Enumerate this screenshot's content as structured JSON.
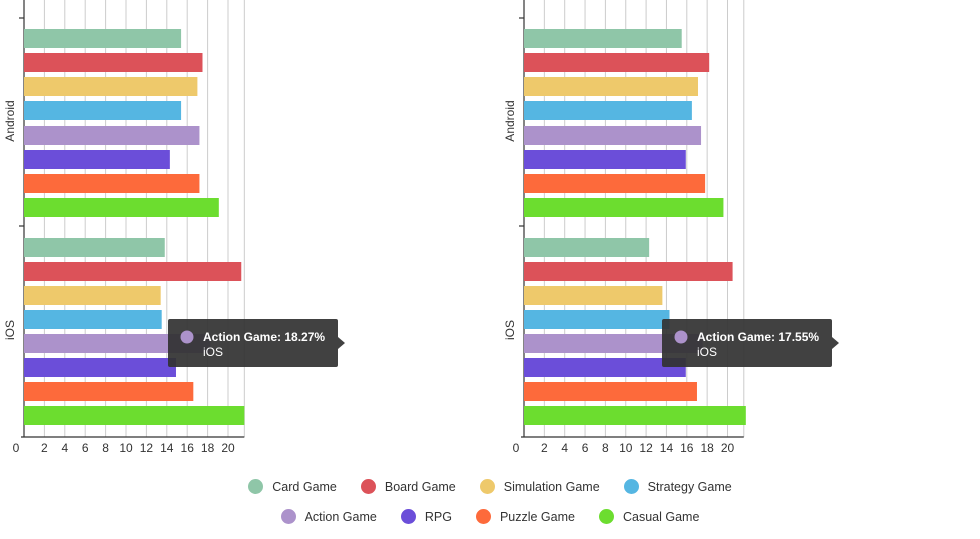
{
  "chart_data": [
    {
      "type": "bar",
      "orientation": "horizontal",
      "groups": [
        "Android",
        "iOS"
      ],
      "x_ticks": [
        0,
        2,
        4,
        6,
        8,
        10,
        12,
        14,
        16,
        18,
        20
      ],
      "xlim": [
        0,
        21.6
      ],
      "grid": true,
      "series": [
        {
          "name": "Card Game",
          "values": [
            15.4,
            13.8
          ]
        },
        {
          "name": "Board Game",
          "values": [
            17.5,
            21.3
          ]
        },
        {
          "name": "Simulation Game",
          "values": [
            17.0,
            13.4
          ]
        },
        {
          "name": "Strategy Game",
          "values": [
            15.4,
            13.5
          ]
        },
        {
          "name": "Action Game",
          "values": [
            17.2,
            18.27
          ]
        },
        {
          "name": "RPG",
          "values": [
            14.3,
            14.9
          ]
        },
        {
          "name": "Puzzle Game",
          "values": [
            17.2,
            16.6
          ]
        },
        {
          "name": "Casual Game",
          "values": [
            19.1,
            21.6
          ]
        }
      ],
      "tooltip": {
        "series_index": 4,
        "group_index": 1,
        "title": "Action Game: 18.27%",
        "subtitle": "iOS"
      }
    },
    {
      "type": "bar",
      "orientation": "horizontal",
      "groups": [
        "Android",
        "iOS"
      ],
      "x_ticks": [
        0,
        2,
        4,
        6,
        8,
        10,
        12,
        14,
        16,
        18,
        20
      ],
      "xlim": [
        0,
        21.6
      ],
      "grid": true,
      "series": [
        {
          "name": "Card Game",
          "values": [
            15.5,
            12.3
          ]
        },
        {
          "name": "Board Game",
          "values": [
            18.2,
            20.5
          ]
        },
        {
          "name": "Simulation Game",
          "values": [
            17.1,
            13.6
          ]
        },
        {
          "name": "Strategy Game",
          "values": [
            16.5,
            14.3
          ]
        },
        {
          "name": "Action Game",
          "values": [
            17.4,
            17.55
          ]
        },
        {
          "name": "RPG",
          "values": [
            15.9,
            15.9
          ]
        },
        {
          "name": "Puzzle Game",
          "values": [
            17.8,
            17.0
          ]
        },
        {
          "name": "Casual Game",
          "values": [
            19.6,
            21.8
          ]
        }
      ],
      "tooltip": {
        "series_index": 4,
        "group_index": 1,
        "title": "Action Game: 17.55%",
        "subtitle": "iOS"
      }
    }
  ],
  "colors": {
    "Card Game": "#8fc6a8",
    "Board Game": "#dc5259",
    "Simulation Game": "#eec96b",
    "Strategy Game": "#55b6e2",
    "Action Game": "#ac92cb",
    "RPG": "#6b4ed9",
    "Puzzle Game": "#fd6a3b",
    "Casual Game": "#6cdd2f",
    "grid": "#cccccc",
    "axis": "#333333",
    "tooltip_bg": "#333333"
  },
  "legend": {
    "rows": [
      [
        "Card Game",
        "Board Game",
        "Simulation Game",
        "Strategy Game"
      ],
      [
        "Action Game",
        "RPG",
        "Puzzle Game",
        "Casual Game"
      ]
    ]
  }
}
